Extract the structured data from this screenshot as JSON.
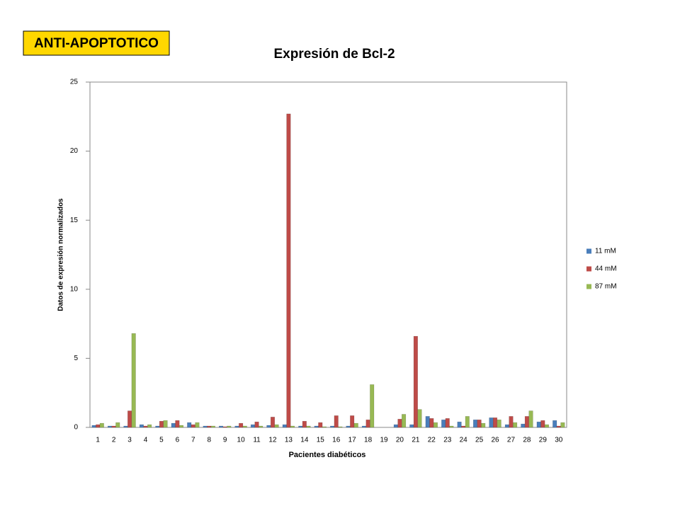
{
  "chart_data": {
    "type": "bar",
    "annotation": "ANTI-APOPTOTICO",
    "title": "Expresión de Bcl-2",
    "x_label": "Pacientes diabéticos",
    "y_label": "Datos de expresión normalizados",
    "categories": [
      "1",
      "2",
      "3",
      "4",
      "5",
      "6",
      "7",
      "8",
      "9",
      "10",
      "11",
      "12",
      "13",
      "14",
      "15",
      "16",
      "17",
      "18",
      "19",
      "20",
      "21",
      "22",
      "23",
      "24",
      "25",
      "26",
      "27",
      "28",
      "29",
      "30"
    ],
    "series": [
      {
        "name": "11 mM",
        "color": "#4a7ebb",
        "values": [
          0.15,
          0.1,
          0.1,
          0.2,
          0.1,
          0.3,
          0.35,
          0.1,
          0.1,
          0.1,
          0.2,
          0.15,
          0.2,
          0.1,
          0.1,
          0.1,
          0.1,
          0.1,
          0,
          0.2,
          0.2,
          0.8,
          0.55,
          0.4,
          0.55,
          0.7,
          0.2,
          0.25,
          0.4,
          0.5
        ]
      },
      {
        "name": "44 mM",
        "color": "#be4b48",
        "values": [
          0.2,
          0.1,
          1.2,
          0.1,
          0.45,
          0.5,
          0.2,
          0.1,
          0.05,
          0.3,
          0.4,
          0.75,
          22.7,
          0.45,
          0.35,
          0.85,
          0.85,
          0.55,
          0,
          0.6,
          6.6,
          0.65,
          0.65,
          0.1,
          0.55,
          0.7,
          0.8,
          0.8,
          0.5,
          0.1
        ]
      },
      {
        "name": "87 mM",
        "color": "#98b954",
        "values": [
          0.3,
          0.35,
          6.8,
          0.2,
          0.5,
          0.15,
          0.35,
          0.1,
          0.1,
          0.1,
          0.1,
          0.2,
          0.1,
          0.1,
          0.05,
          0.05,
          0.3,
          3.1,
          0,
          0.95,
          1.3,
          0.35,
          0.1,
          0.8,
          0.3,
          0.55,
          0.35,
          1.2,
          0.2,
          0.35
        ]
      }
    ],
    "ylim": [
      0,
      25
    ],
    "yticks": [
      0,
      5,
      10,
      15,
      20,
      25
    ],
    "legend": "right",
    "grid": false
  }
}
